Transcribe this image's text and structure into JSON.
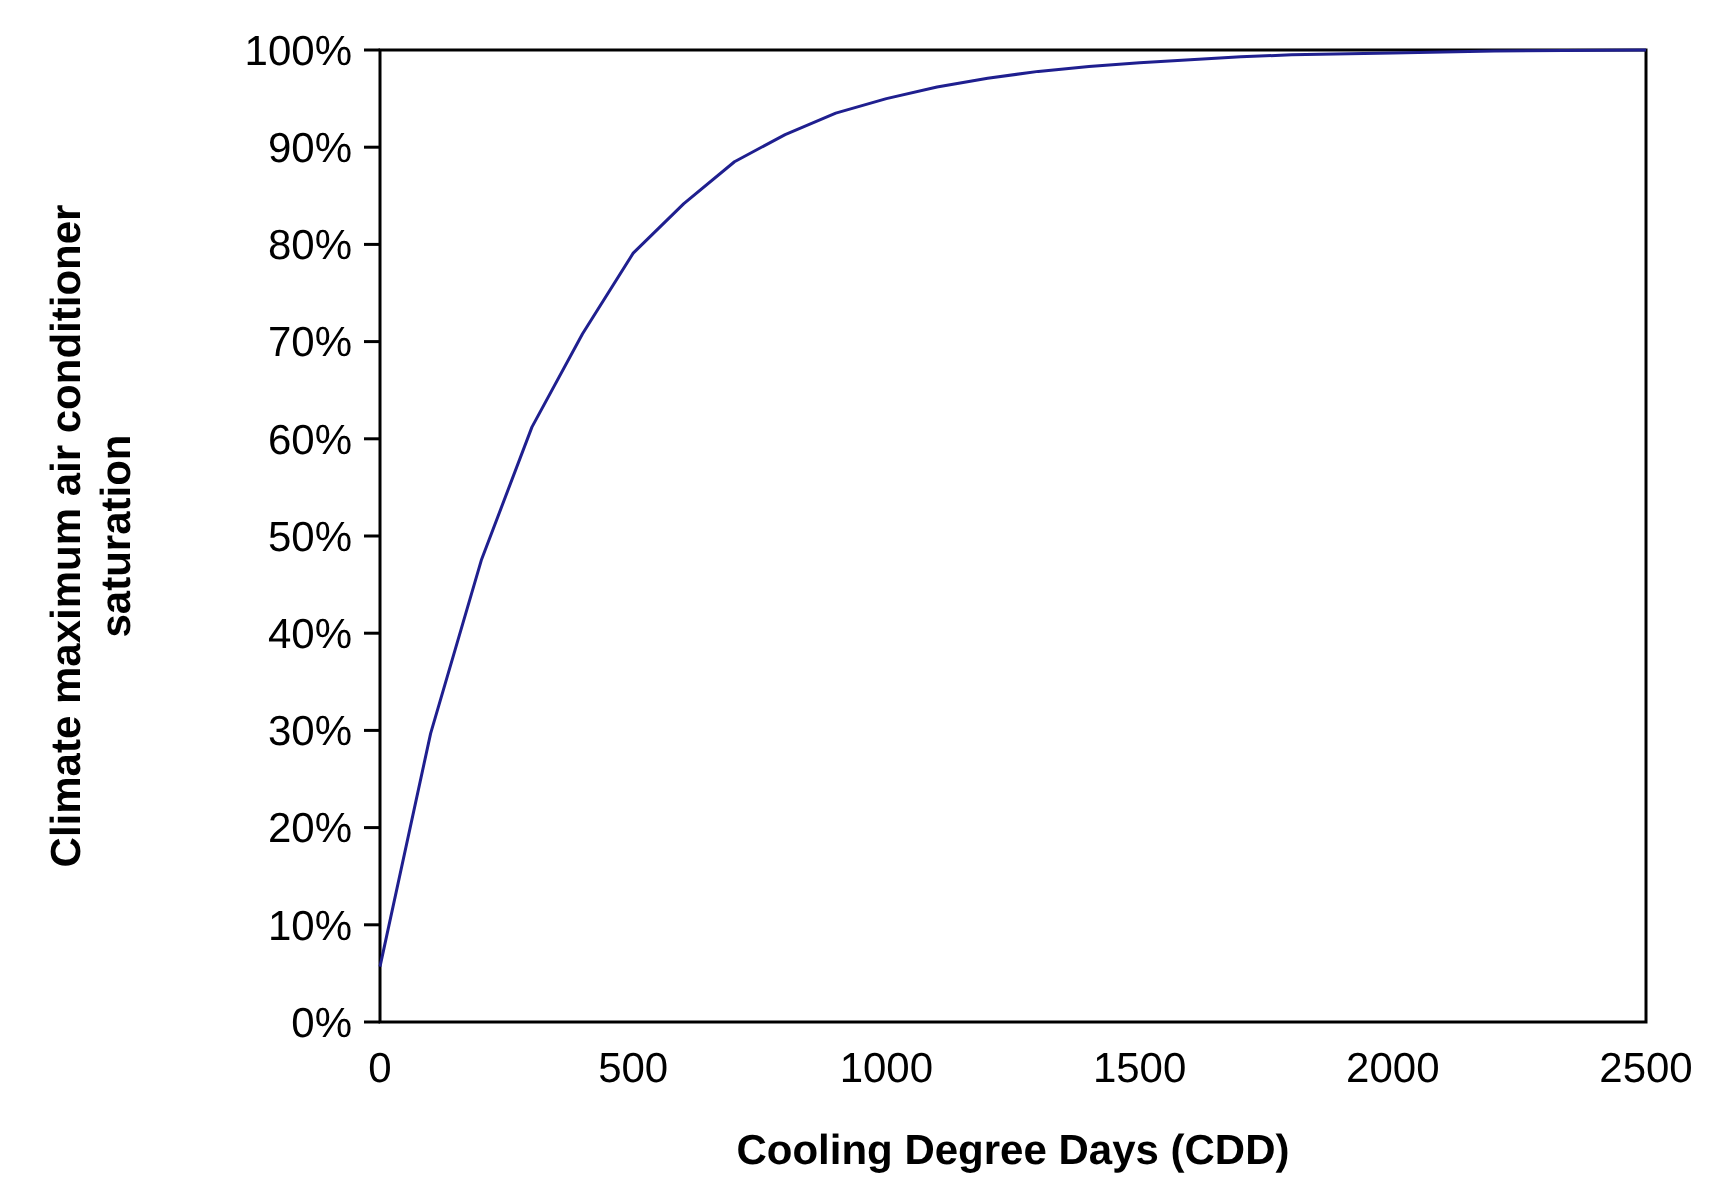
{
  "chart_data": {
    "type": "line",
    "xlabel": "Cooling Degree Days (CDD)",
    "ylabel": "Climate maximum air conditioner saturation",
    "xlim": [
      0,
      2500
    ],
    "xticks": [
      0,
      500,
      1000,
      1500,
      2000,
      2500
    ],
    "ylim": [
      0,
      100
    ],
    "yticks": [
      {
        "value": 0,
        "label": "0%"
      },
      {
        "value": 10,
        "label": "10%"
      },
      {
        "value": 20,
        "label": "20%"
      },
      {
        "value": 30,
        "label": "30%"
      },
      {
        "value": 40,
        "label": "40%"
      },
      {
        "value": 50,
        "label": "50%"
      },
      {
        "value": 60,
        "label": "60%"
      },
      {
        "value": 70,
        "label": "70%"
      },
      {
        "value": 80,
        "label": "80%"
      },
      {
        "value": 90,
        "label": "90%"
      },
      {
        "value": 100,
        "label": "100%"
      }
    ],
    "marker": "none",
    "line_style": "solid",
    "x": [
      0,
      100,
      200,
      300,
      400,
      500,
      600,
      700,
      800,
      900,
      1000,
      1100,
      1200,
      1300,
      1400,
      1500,
      1600,
      1700,
      1800,
      2000,
      2200,
      2500
    ],
    "series": [
      {
        "color": "#1f1f8f",
        "values": [
          5.7,
          29.7,
          47.5,
          61.2,
          70.8,
          79.1,
          84.2,
          88.5,
          91.3,
          93.5,
          95,
          96.2,
          97.1,
          97.8,
          98.3,
          98.7,
          99,
          99.3,
          99.5,
          99.7,
          99.9,
          100
        ]
      }
    ]
  }
}
